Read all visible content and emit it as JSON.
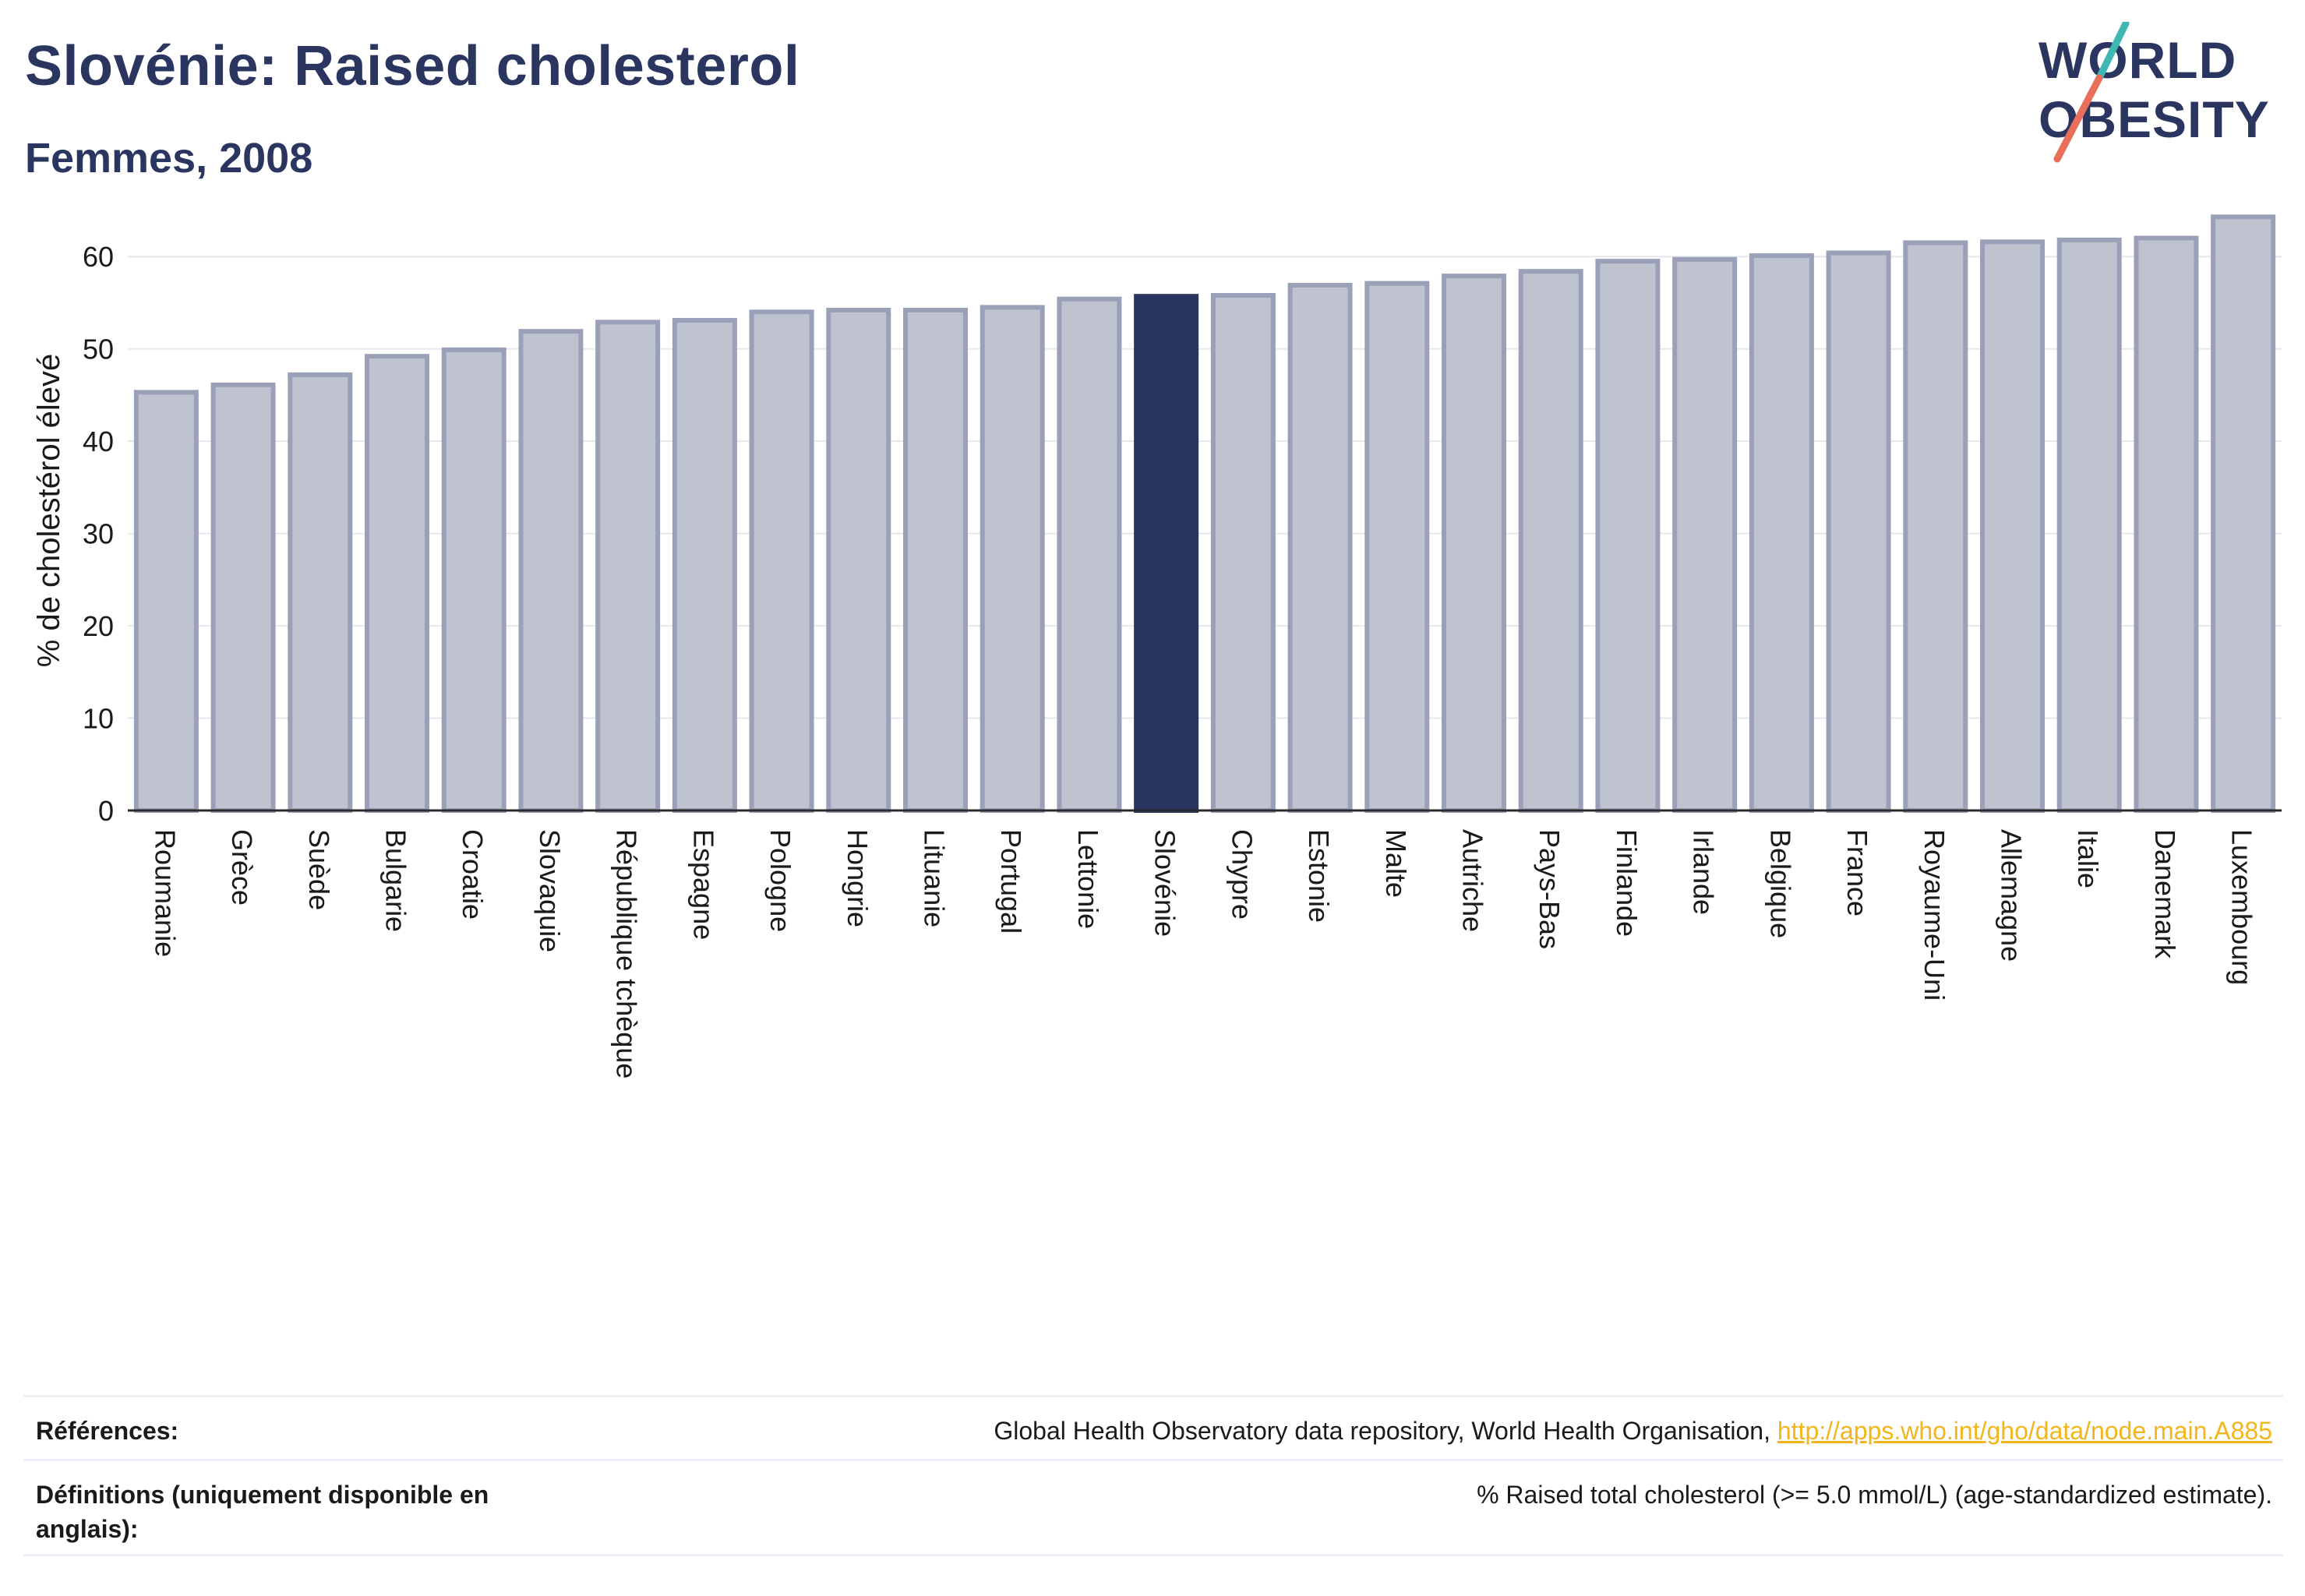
{
  "header": {
    "title": "Slovénie: Raised cholesterol",
    "subtitle": "Femmes, 2008"
  },
  "logo": {
    "line1": "WORLD",
    "line2": "OBESITY",
    "text_color": "#2a3560",
    "slash_colors": [
      "#3fb8b4",
      "#e8705a"
    ]
  },
  "chart_data": {
    "type": "bar",
    "title": "Slovénie: Raised cholesterol",
    "subtitle": "Femmes, 2008",
    "ylabel": "% de cholestérol élevé",
    "xlabel": "",
    "ylim": [
      0,
      65
    ],
    "yticks": [
      0,
      10,
      20,
      30,
      40,
      50,
      60
    ],
    "grid": true,
    "highlight": "Slovénie",
    "colors": {
      "bar_fill": "#bfc2cf",
      "bar_border": "#9aa0b8",
      "highlight_fill": "#2a3560",
      "grid": "#e6e8ef",
      "axis": "#2b2b2b"
    },
    "categories": [
      "Roumanie",
      "Grèce",
      "Suède",
      "Bulgarie",
      "Croatie",
      "Slovaquie",
      "République tchèque",
      "Espagne",
      "Pologne",
      "Hongrie",
      "Lituanie",
      "Portugal",
      "Lettonie",
      "Slovénie",
      "Chypre",
      "Estonie",
      "Malte",
      "Autriche",
      "Pays-Bas",
      "Finlande",
      "Irlande",
      "Belgique",
      "France",
      "Royaume-Uni",
      "Allemagne",
      "Italie",
      "Danemark",
      "Luxembourg"
    ],
    "values": [
      45.3,
      46.1,
      47.2,
      49.2,
      49.9,
      51.9,
      52.9,
      53.1,
      54.0,
      54.2,
      54.2,
      54.5,
      55.4,
      55.7,
      55.8,
      56.9,
      57.1,
      57.9,
      58.4,
      59.5,
      59.7,
      60.1,
      60.4,
      61.5,
      61.6,
      61.8,
      62.0,
      64.3
    ]
  },
  "footer": {
    "references_label": "Références:",
    "references_text": "Global Health Observatory data repository, World Health Organisation, ",
    "references_link": "http://apps.who.int/gho/data/node.main.A885",
    "definitions_label": "Définitions (uniquement disponible en anglais):",
    "definitions_text": "% Raised total cholesterol (>= 5.0 mmol/L) (age-standardized estimate)."
  }
}
